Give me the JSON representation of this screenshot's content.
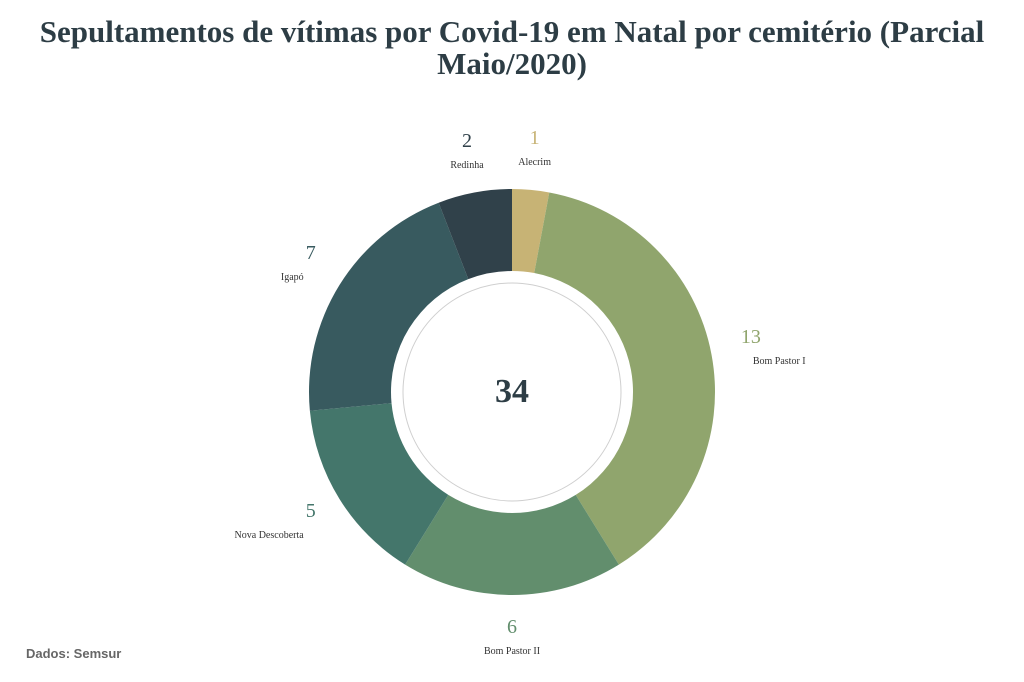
{
  "chart_data": {
    "type": "pie",
    "title_lines": [
      "Sepultamentos de vítimas por Covid-19 em Natal por cemitério (Parcial",
      "Maio/2020)"
    ],
    "total_label": "34",
    "source": "Dados: Semsur",
    "slices": [
      {
        "name": "Alecrim",
        "value": 1,
        "color": "#c7b375"
      },
      {
        "name": "Bom Pastor I",
        "value": 13,
        "color": "#90a56d"
      },
      {
        "name": "Bom Pastor II",
        "value": 6,
        "color": "#628e6d"
      },
      {
        "name": "Nova Descoberta",
        "value": 5,
        "color": "#44766b"
      },
      {
        "name": "Igapó",
        "value": 7,
        "color": "#385a5f"
      },
      {
        "name": "Redinha",
        "value": 2,
        "color": "#30414a"
      }
    ],
    "center_color": "#2d3d45"
  }
}
